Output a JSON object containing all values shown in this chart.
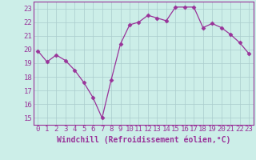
{
  "x": [
    0,
    1,
    2,
    3,
    4,
    5,
    6,
    7,
    8,
    9,
    10,
    11,
    12,
    13,
    14,
    15,
    16,
    17,
    18,
    19,
    20,
    21,
    22,
    23
  ],
  "y": [
    19.9,
    19.1,
    19.6,
    19.2,
    18.5,
    17.6,
    16.5,
    15.0,
    17.8,
    20.4,
    21.8,
    22.0,
    22.5,
    22.3,
    22.1,
    23.1,
    23.1,
    23.1,
    21.6,
    21.9,
    21.6,
    21.1,
    20.5,
    19.7
  ],
  "line_color": "#993399",
  "marker": "D",
  "marker_size": 2.5,
  "bg_color": "#cceee8",
  "grid_color": "#aacccc",
  "xlabel": "Windchill (Refroidissement éolien,°C)",
  "ylim": [
    14.5,
    23.5
  ],
  "xlim": [
    -0.5,
    23.5
  ],
  "yticks": [
    15,
    16,
    17,
    18,
    19,
    20,
    21,
    22,
    23
  ],
  "xticks": [
    0,
    1,
    2,
    3,
    4,
    5,
    6,
    7,
    8,
    9,
    10,
    11,
    12,
    13,
    14,
    15,
    16,
    17,
    18,
    19,
    20,
    21,
    22,
    23
  ],
  "font_color": "#993399",
  "tick_fontsize": 6.5,
  "label_fontsize": 7.0,
  "linewidth": 0.9
}
